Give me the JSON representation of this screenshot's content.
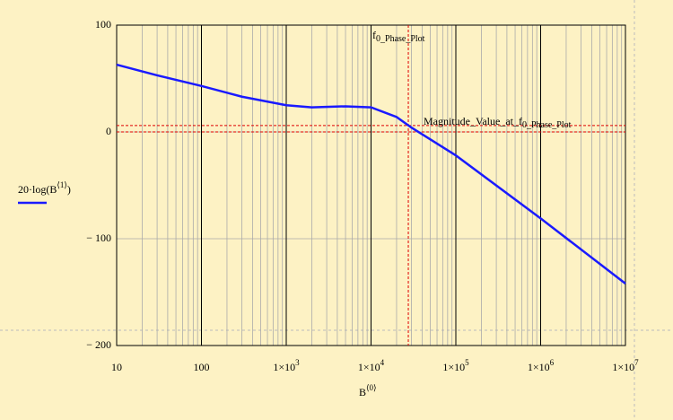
{
  "chart_data": {
    "type": "line",
    "x_label": {
      "base": "B",
      "sup": "⟨0⟩"
    },
    "y_label": {
      "base": "20·log(B",
      "sup": "⟨1⟩",
      "tail": ")"
    },
    "x_log": true,
    "grid": true,
    "x_minor_grid": true,
    "xlim": [
      10,
      10000000
    ],
    "ylim": [
      -200,
      100
    ],
    "xticks": [
      {
        "value": 10,
        "label": "10"
      },
      {
        "value": 100,
        "label": "100"
      },
      {
        "value": 1000,
        "label": "1×10",
        "exp": "3"
      },
      {
        "value": 10000,
        "label": "1×10",
        "exp": "4"
      },
      {
        "value": 100000,
        "label": "1×10",
        "exp": "5"
      },
      {
        "value": 1000000,
        "label": "1×10",
        "exp": "6"
      },
      {
        "value": 10000000,
        "label": "1×10",
        "exp": "7"
      }
    ],
    "yticks": [
      100,
      0,
      {
        "value": -100,
        "label": "− 100"
      },
      {
        "value": -200,
        "label": "− 200"
      }
    ],
    "series": [
      {
        "color": "#1a1aff",
        "x": [
          10,
          30,
          100,
          300,
          1000,
          2000,
          5000,
          10000,
          20000,
          30000,
          50000,
          100000,
          1000000,
          10000000
        ],
        "values": [
          63,
          53,
          43,
          33,
          25,
          23,
          24,
          23,
          14,
          4,
          -7,
          -22,
          -81,
          -142
        ]
      }
    ],
    "markers": {
      "color": "#e00000",
      "vertical": {
        "value": 27500,
        "label": {
          "base": "f",
          "sub": "0_Phase_Plot"
        }
      },
      "horizontal": [
        {
          "value": 6,
          "label": {
            "base": "Magnitude_Value_at_f",
            "sub": "0_Phase_Plot"
          }
        },
        {
          "value": 0
        }
      ]
    }
  }
}
